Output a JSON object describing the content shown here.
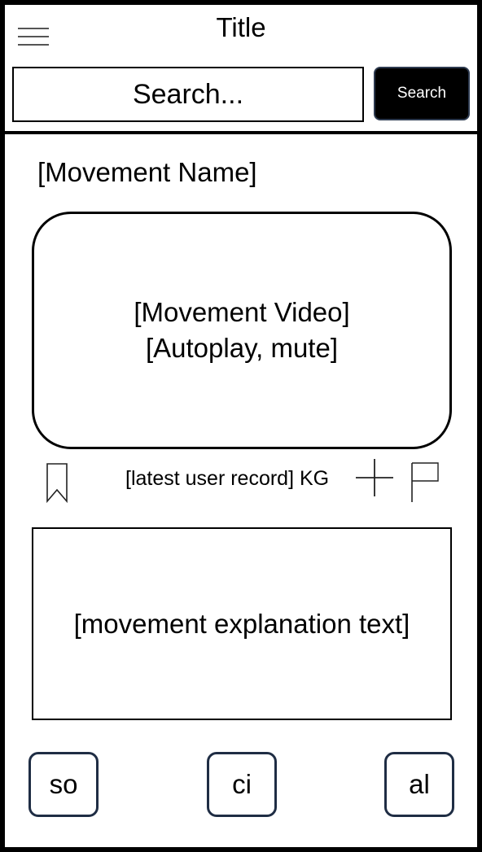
{
  "header": {
    "title": "Title",
    "menu_icon": "hamburger-menu-icon",
    "search": {
      "placeholder": "Search...",
      "value": "",
      "button_label": "Search"
    }
  },
  "movement": {
    "name": "[Movement Name]",
    "video_line1": "[Movement Video]",
    "video_line2": "[Autoplay, mute]",
    "latest_record": "[latest user record] KG",
    "explanation": "[movement explanation text]"
  },
  "actions": {
    "bookmark_icon": "bookmark-icon",
    "add_icon": "plus-icon",
    "flag_icon": "flag-icon"
  },
  "bottom_nav": {
    "items": [
      {
        "label": "so"
      },
      {
        "label": "ci"
      },
      {
        "label": "al"
      }
    ]
  },
  "colors": {
    "background": "#ffffff",
    "frame": "#000000",
    "search_button_bg": "#000000",
    "search_button_text": "#ffffff",
    "nav_button_border": "#1f2d44"
  }
}
